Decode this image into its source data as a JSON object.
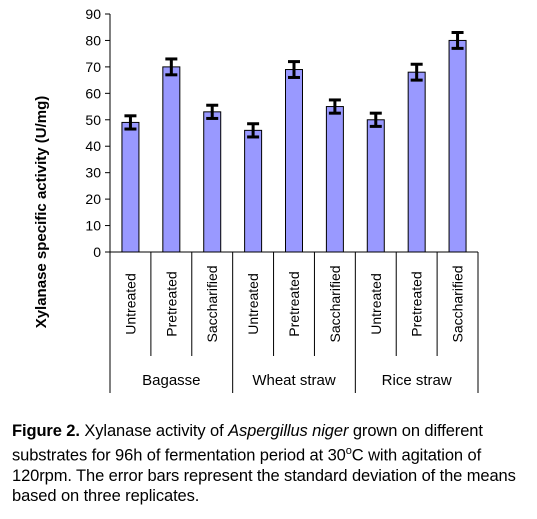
{
  "chart_data": {
    "type": "bar",
    "ylabel": "Xylanase specific activity (U/mg)",
    "ylim": [
      0,
      90
    ],
    "yticks": [
      "0",
      "10",
      "20",
      "30",
      "40",
      "50",
      "60",
      "70",
      "80",
      "90"
    ],
    "grid": false,
    "bar_color": "#9999ff",
    "groups": [
      {
        "name": "Bagasse",
        "categories": [
          "Untreated",
          "Pretreated",
          "Saccharified"
        ],
        "values": [
          49,
          70,
          53
        ],
        "errors": [
          2.5,
          3,
          2.5
        ]
      },
      {
        "name": "Wheat straw",
        "categories": [
          "Untreated",
          "Pretreated",
          "Saccharified"
        ],
        "values": [
          46,
          69,
          55
        ],
        "errors": [
          2.5,
          3,
          2.5
        ]
      },
      {
        "name": "Rice straw",
        "categories": [
          "Untreated",
          "Pretreated",
          "Saccharified"
        ],
        "values": [
          50,
          68,
          80
        ],
        "errors": [
          2.5,
          3,
          3
        ]
      }
    ]
  },
  "caption": {
    "label": "Figure 2.",
    "text_before": " Xylanase activity of ",
    "italic": "Aspergillus niger",
    "text_mid": " grown on different substrates for 96h of fermentation period at 30",
    "superscript": "o",
    "text_after": "C with agitation of 120rpm. The error bars represent the standard deviation of the means based on three replicates."
  }
}
